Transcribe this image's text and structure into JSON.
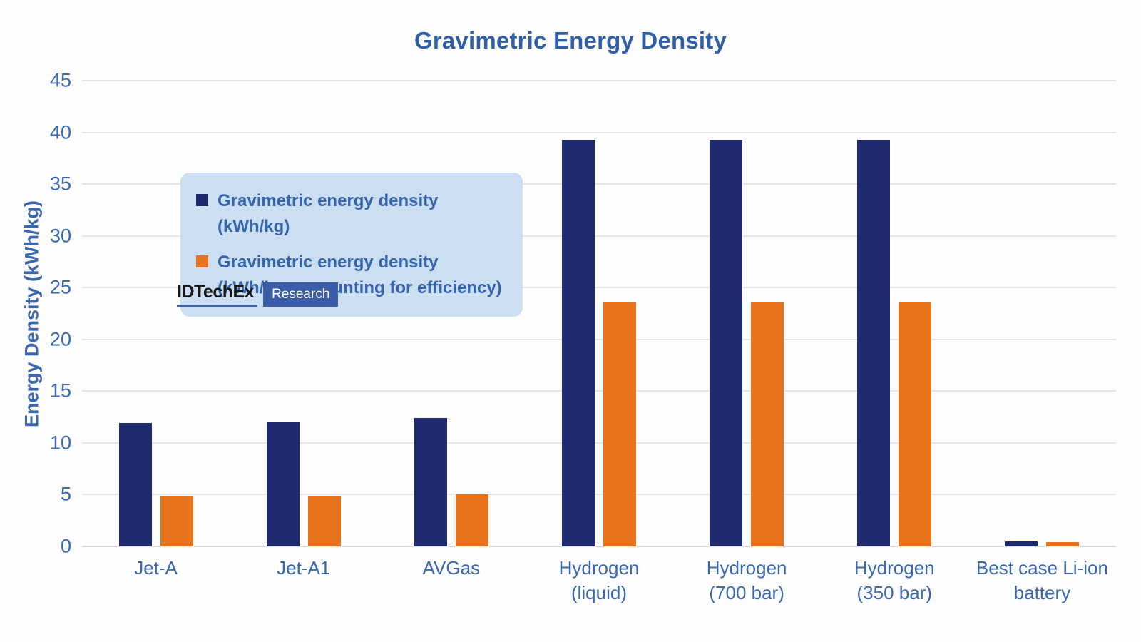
{
  "colors": {
    "navy": "#1f2a6e",
    "orange": "#e8731d",
    "title_text": "#2f5fa8",
    "axis_text": "#3a68b0",
    "legend_bg": "#cbdef2",
    "legend_text": "#3565ae",
    "gridline": "#e5e5e5",
    "baseline": "#d7d7d7",
    "logo_box": "#3b5ca8",
    "logo_underline": "#3c64b0",
    "background": "#fdfdfd"
  },
  "logo": {
    "brand": "IDTechEx",
    "label": "Research"
  },
  "chart_data": {
    "type": "bar",
    "title": "Gravimetric Energy Density",
    "xlabel": "",
    "ylabel": "Energy Density (kWh/kg)",
    "ylim": [
      0,
      45
    ],
    "ytick_step": 5,
    "grid": true,
    "legend_position": "top-left",
    "categories": [
      "Jet-A",
      "Jet-A1",
      "AVGas",
      "Hydrogen (liquid)",
      "Hydrogen (700 bar)",
      "Hydrogen (350 bar)",
      "Best case Li-ion battery"
    ],
    "category_lines": [
      [
        "Jet-A"
      ],
      [
        "Jet-A1"
      ],
      [
        "AVGas"
      ],
      [
        "Hydrogen",
        "(liquid)"
      ],
      [
        "Hydrogen",
        "(700 bar)"
      ],
      [
        "Hydrogen",
        "(350 bar)"
      ],
      [
        "Best case Li-ion",
        "battery"
      ]
    ],
    "series": [
      {
        "name": "Gravimetric energy density (kWh/kg)",
        "legend_lines": [
          "Gravimetric energy density (kWh/kg)"
        ],
        "color": "#1f2a6e",
        "values": [
          11.9,
          12.0,
          12.4,
          39.3,
          39.3,
          39.3,
          0.5
        ]
      },
      {
        "name": "Gravimetric energy density (kWh/kg, accounting for efficiency)",
        "legend_lines": [
          "Gravimetric energy density",
          "(kWh/kg, accounting for efficiency)"
        ],
        "color": "#e8731d",
        "values": [
          4.8,
          4.8,
          5.0,
          23.6,
          23.6,
          23.6,
          0.4
        ]
      }
    ]
  }
}
